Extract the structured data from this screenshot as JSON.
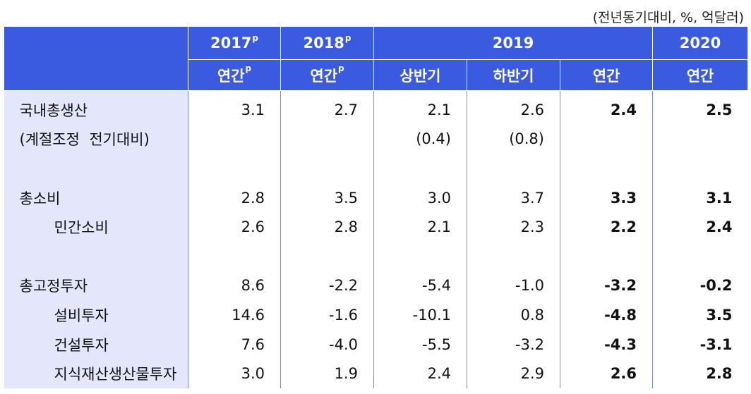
{
  "unit_note": "(전년동기대비, %, 억달러)",
  "header": {
    "years": [
      {
        "year": "2017",
        "mark": "p"
      },
      {
        "year": "2018",
        "mark": "p"
      },
      {
        "year": "2019",
        "mark": ""
      },
      {
        "year": "2020",
        "mark": ""
      }
    ],
    "sub": [
      {
        "label": "연간",
        "mark": "p"
      },
      {
        "label": "연간",
        "mark": "p"
      },
      {
        "label": "상반기",
        "mark": ""
      },
      {
        "label": "하반기",
        "mark": ""
      },
      {
        "label": "연간",
        "mark": ""
      },
      {
        "label": "연간",
        "mark": ""
      }
    ]
  },
  "rows": [
    {
      "label": "국내총생산",
      "indent": false,
      "values": [
        "3.1",
        "2.7",
        "2.1",
        "2.6",
        "2.4",
        "2.5"
      ]
    },
    {
      "label": "(계절조정  전기대비)",
      "indent": false,
      "values": [
        "",
        "",
        "(0.4)",
        "(0.8)",
        "",
        ""
      ]
    },
    {
      "label": "",
      "indent": false,
      "values": [
        "",
        "",
        "",
        "",
        "",
        ""
      ]
    },
    {
      "label": "총소비",
      "indent": false,
      "values": [
        "2.8",
        "3.5",
        "3.0",
        "3.7",
        "3.3",
        "3.1"
      ]
    },
    {
      "label": "민간소비",
      "indent": true,
      "values": [
        "2.6",
        "2.8",
        "2.1",
        "2.3",
        "2.2",
        "2.4"
      ]
    },
    {
      "label": "",
      "indent": false,
      "values": [
        "",
        "",
        "",
        "",
        "",
        ""
      ]
    },
    {
      "label": "총고정투자",
      "indent": false,
      "values": [
        "8.6",
        "-2.2",
        "-5.4",
        "-1.0",
        "-3.2",
        "-0.2"
      ]
    },
    {
      "label": "설비투자",
      "indent": true,
      "values": [
        "14.6",
        "-1.6",
        "-10.1",
        "0.8",
        "-4.8",
        "3.5"
      ]
    },
    {
      "label": "건설투자",
      "indent": true,
      "values": [
        "7.6",
        "-4.0",
        "-5.5",
        "-3.2",
        "-4.3",
        "-3.1"
      ]
    },
    {
      "label": "지식재산생산물투자",
      "indent": true,
      "values": [
        "3.0",
        "1.9",
        "2.4",
        "2.9",
        "2.6",
        "2.8"
      ]
    }
  ]
}
